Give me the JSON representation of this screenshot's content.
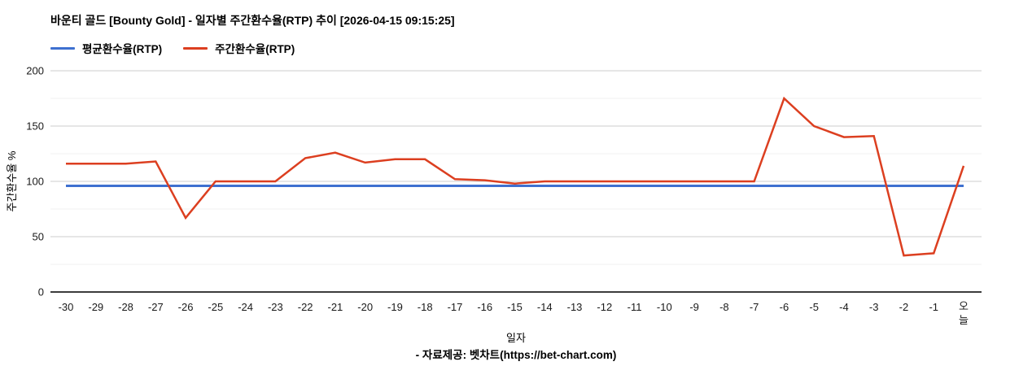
{
  "header": {
    "title": "바운티 골드 [Bounty Gold] - 일자별 주간환수율(RTP) 추이 [2026-04-15 09:15:25]"
  },
  "legend": {
    "items": [
      {
        "label": "평균환수율(RTP)"
      },
      {
        "label": "주간환수율(RTP)"
      }
    ]
  },
  "footer": {
    "credit": "- 자료제공: 벳차트(https://bet-chart.com)"
  },
  "colors": {
    "average_line": "#3e70d0",
    "weekly_line": "#dc3f20",
    "gridline_major": "#cccccc",
    "gridline_minor": "#f0f0f0",
    "axis_line": "#3c3c3c"
  },
  "chart_data": {
    "type": "line",
    "title": "바운티 골드 [Bounty Gold] - 일자별 주간환수율(RTP) 추이 [2026-04-15 09:15:25]",
    "xlabel": "일자",
    "ylabel": "주간환수율 %",
    "ylim": [
      0,
      200
    ],
    "y_major_ticks": [
      0,
      50,
      100,
      150,
      200
    ],
    "y_minor_ticks": [
      25,
      75,
      125,
      175
    ],
    "grid": true,
    "legend_position": "top-left",
    "categories": [
      "-30",
      "-29",
      "-28",
      "-27",
      "-26",
      "-25",
      "-24",
      "-23",
      "-22",
      "-21",
      "-20",
      "-19",
      "-18",
      "-17",
      "-16",
      "-15",
      "-14",
      "-13",
      "-12",
      "-11",
      "-10",
      "-9",
      "-8",
      "-7",
      "-6",
      "-5",
      "-4",
      "-3",
      "-2",
      "-1",
      "오늘"
    ],
    "series": [
      {
        "name": "평균환수율(RTP)",
        "color": "#3e70d0",
        "values": [
          96,
          96,
          96,
          96,
          96,
          96,
          96,
          96,
          96,
          96,
          96,
          96,
          96,
          96,
          96,
          96,
          96,
          96,
          96,
          96,
          96,
          96,
          96,
          96,
          96,
          96,
          96,
          96,
          96,
          96,
          96
        ]
      },
      {
        "name": "주간환수율(RTP)",
        "color": "#dc3f20",
        "values": [
          116,
          116,
          116,
          118,
          67,
          100,
          100,
          100,
          121,
          126,
          117,
          120,
          120,
          102,
          101,
          98,
          100,
          100,
          100,
          100,
          100,
          100,
          100,
          100,
          175,
          150,
          140,
          141,
          33,
          35,
          114
        ]
      }
    ]
  }
}
